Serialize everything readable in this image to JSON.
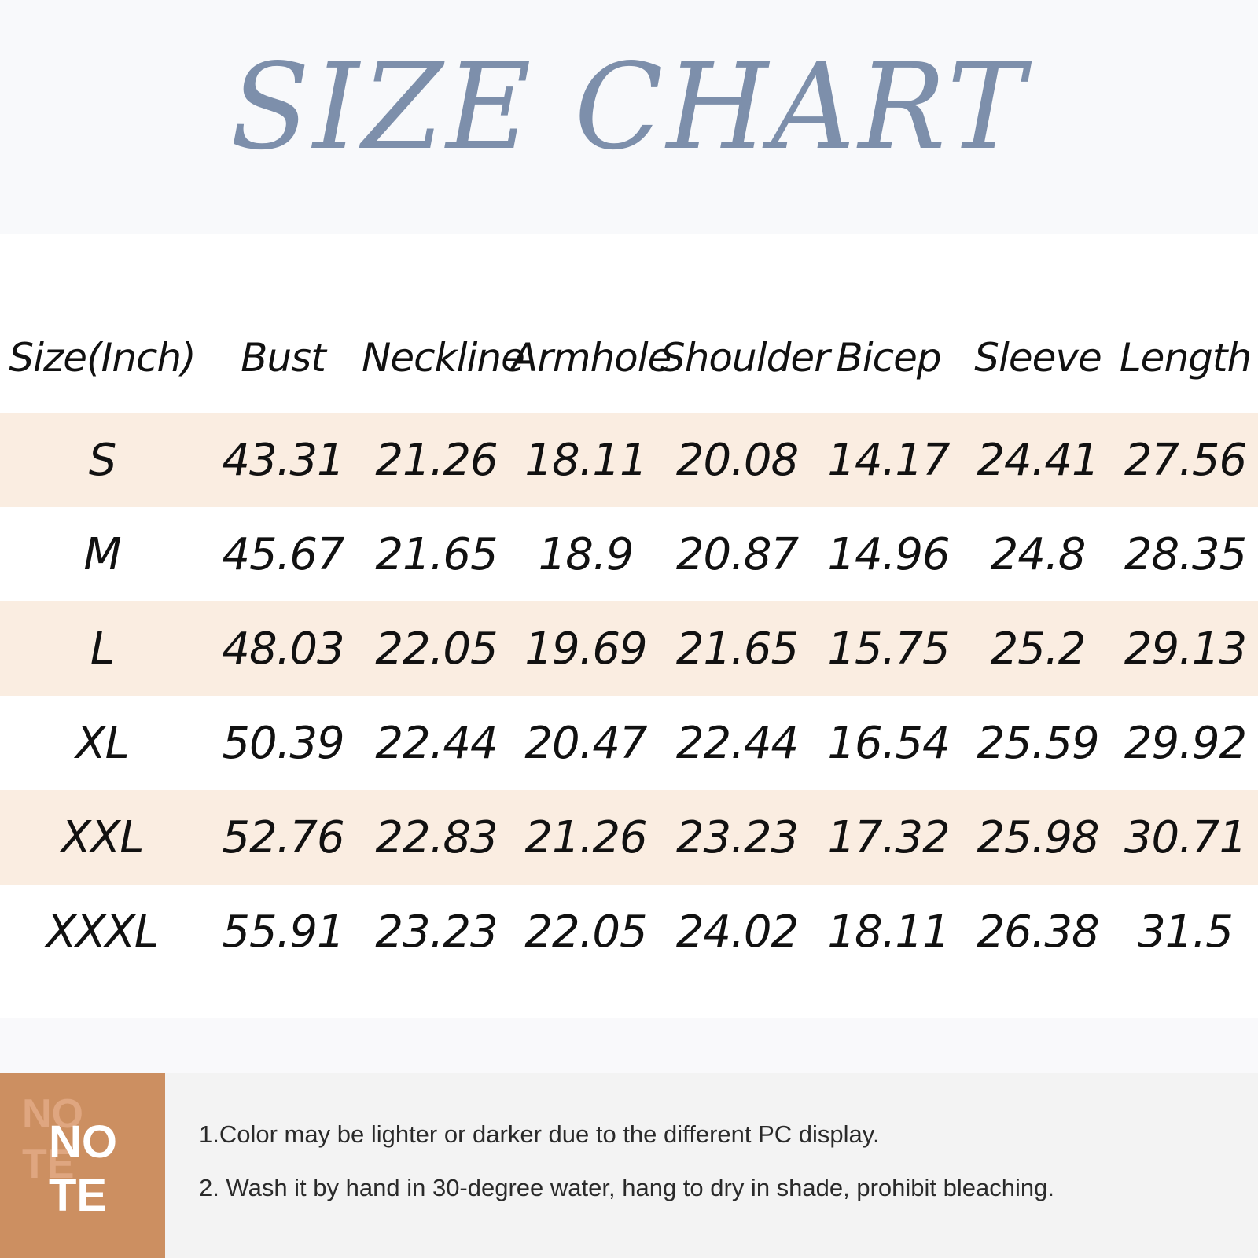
{
  "title": "SIZE CHART",
  "colors": {
    "title": "#7d8fab",
    "row_shade": "#faede1",
    "note_badge": "#cc8f61"
  },
  "table": {
    "headers": [
      "Size(Inch)",
      "Bust",
      "Neckline",
      "Armhole",
      "Shoulder",
      "Bicep",
      "Sleeve",
      "Length"
    ],
    "rows": [
      [
        "S",
        "43.31",
        "21.26",
        "18.11",
        "20.08",
        "14.17",
        "24.41",
        "27.56"
      ],
      [
        "M",
        "45.67",
        "21.65",
        "18.9",
        "20.87",
        "14.96",
        "24.8",
        "28.35"
      ],
      [
        "L",
        "48.03",
        "22.05",
        "19.69",
        "21.65",
        "15.75",
        "25.2",
        "29.13"
      ],
      [
        "XL",
        "50.39",
        "22.44",
        "20.47",
        "22.44",
        "16.54",
        "25.59",
        "29.92"
      ],
      [
        "XXL",
        "52.76",
        "22.83",
        "21.26",
        "23.23",
        "17.32",
        "25.98",
        "30.71"
      ],
      [
        "XXXL",
        "55.91",
        "23.23",
        "22.05",
        "24.02",
        "18.11",
        "26.38",
        "31.5"
      ]
    ]
  },
  "note": {
    "badge_ghost_line1": "NO",
    "badge_ghost_line2": "TE",
    "badge_line1": "NO",
    "badge_line2": "TE",
    "items": [
      "1.Color may be lighter or darker due to the different PC display.",
      "2. Wash it by hand in 30-degree water, hang to dry in shade, prohibit bleaching."
    ]
  }
}
